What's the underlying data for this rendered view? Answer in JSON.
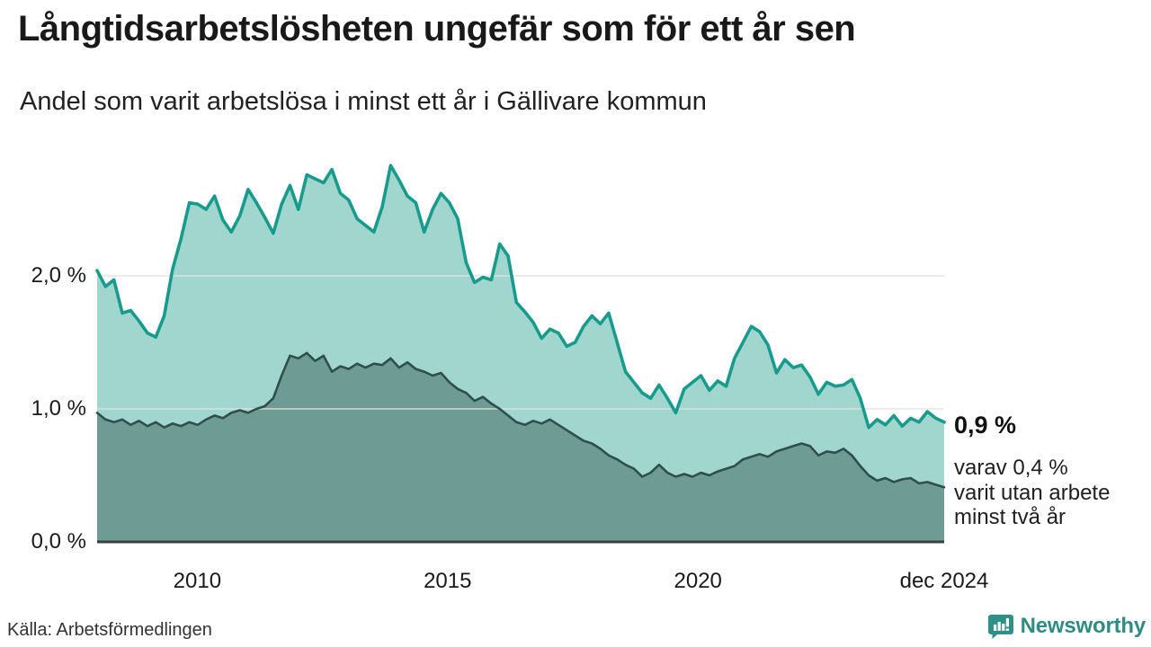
{
  "header": {
    "title": "Långtidsarbetslösheten ungefär som för ett år sen",
    "subtitle": "Andel som varit arbetslösa i minst ett år i Gällivare kommun"
  },
  "chart_data": {
    "type": "area",
    "title": "Långtidsarbetslösheten ungefär som för ett år sen",
    "subtitle": "Andel som varit arbetslösa i minst ett år i Gällivare kommun",
    "unit": "%",
    "x_start_year": 2008.0,
    "x_end_year": 2024.917,
    "points_interval_months": 2,
    "ylim": [
      0,
      2.95
    ],
    "grid": true,
    "y_ticks": [
      {
        "value": 0,
        "label": "0,0 %"
      },
      {
        "value": 1,
        "label": "1,0 %"
      },
      {
        "value": 2,
        "label": "2,0 %"
      }
    ],
    "x_ticks": [
      {
        "x": 2010,
        "label": "2010"
      },
      {
        "x": 2015,
        "label": "2015"
      },
      {
        "x": 2020,
        "label": "2020"
      },
      {
        "x": 2024.917,
        "label": "dec 2024"
      }
    ],
    "series": [
      {
        "name": "Arbetslösa minst ett år",
        "stroke": "#189b8c",
        "fill": "#a0d6cd",
        "stroke_width": 3.6,
        "values": [
          2.04,
          1.92,
          1.97,
          1.72,
          1.74,
          1.66,
          1.57,
          1.54,
          1.7,
          2.05,
          2.28,
          2.55,
          2.54,
          2.5,
          2.6,
          2.42,
          2.33,
          2.45,
          2.65,
          2.55,
          2.44,
          2.32,
          2.54,
          2.68,
          2.5,
          2.76,
          2.73,
          2.7,
          2.8,
          2.62,
          2.57,
          2.43,
          2.38,
          2.33,
          2.52,
          2.83,
          2.72,
          2.6,
          2.55,
          2.33,
          2.5,
          2.62,
          2.55,
          2.43,
          2.1,
          1.95,
          1.99,
          1.97,
          2.24,
          2.15,
          1.8,
          1.73,
          1.65,
          1.53,
          1.6,
          1.57,
          1.47,
          1.5,
          1.62,
          1.7,
          1.64,
          1.72,
          1.5,
          1.28,
          1.2,
          1.12,
          1.08,
          1.18,
          1.08,
          0.97,
          1.15,
          1.2,
          1.25,
          1.14,
          1.21,
          1.17,
          1.38,
          1.5,
          1.62,
          1.58,
          1.48,
          1.27,
          1.37,
          1.31,
          1.33,
          1.24,
          1.11,
          1.2,
          1.17,
          1.18,
          1.22,
          1.08,
          0.86,
          0.92,
          0.88,
          0.95,
          0.87,
          0.93,
          0.9,
          0.98,
          0.93,
          0.9
        ]
      },
      {
        "name": "Arbetslösa minst två år",
        "stroke": "#2e4f4b",
        "fill": "#6f9b95",
        "stroke_width": 2.6,
        "values": [
          0.97,
          0.92,
          0.9,
          0.92,
          0.88,
          0.91,
          0.87,
          0.9,
          0.86,
          0.89,
          0.87,
          0.9,
          0.88,
          0.92,
          0.95,
          0.93,
          0.97,
          0.99,
          0.97,
          1.0,
          1.02,
          1.08,
          1.25,
          1.4,
          1.38,
          1.42,
          1.36,
          1.4,
          1.28,
          1.32,
          1.3,
          1.34,
          1.31,
          1.34,
          1.33,
          1.38,
          1.31,
          1.35,
          1.3,
          1.28,
          1.25,
          1.27,
          1.2,
          1.15,
          1.12,
          1.06,
          1.09,
          1.04,
          1.0,
          0.95,
          0.9,
          0.88,
          0.91,
          0.89,
          0.92,
          0.88,
          0.84,
          0.8,
          0.76,
          0.74,
          0.7,
          0.65,
          0.62,
          0.58,
          0.55,
          0.49,
          0.52,
          0.58,
          0.52,
          0.49,
          0.51,
          0.49,
          0.52,
          0.5,
          0.53,
          0.55,
          0.57,
          0.62,
          0.64,
          0.66,
          0.64,
          0.68,
          0.7,
          0.72,
          0.74,
          0.72,
          0.65,
          0.68,
          0.67,
          0.7,
          0.65,
          0.57,
          0.5,
          0.46,
          0.48,
          0.45,
          0.47,
          0.48,
          0.44,
          0.45,
          0.43,
          0.41
        ]
      }
    ],
    "legend_position": "none",
    "colors": {
      "gridline": "#e1e1e1",
      "baseline": "#3a4240",
      "accent_teal": "#189b8c",
      "brand_teal": "#2e8c82"
    },
    "annotation": {
      "latest_total": "0,9 %",
      "lines": [
        "varav 0,4 %",
        "varit utan arbete",
        "minst två år"
      ]
    }
  },
  "footer": {
    "source": "Källa: Arbetsförmedlingen",
    "brand": "Newsworthy"
  }
}
